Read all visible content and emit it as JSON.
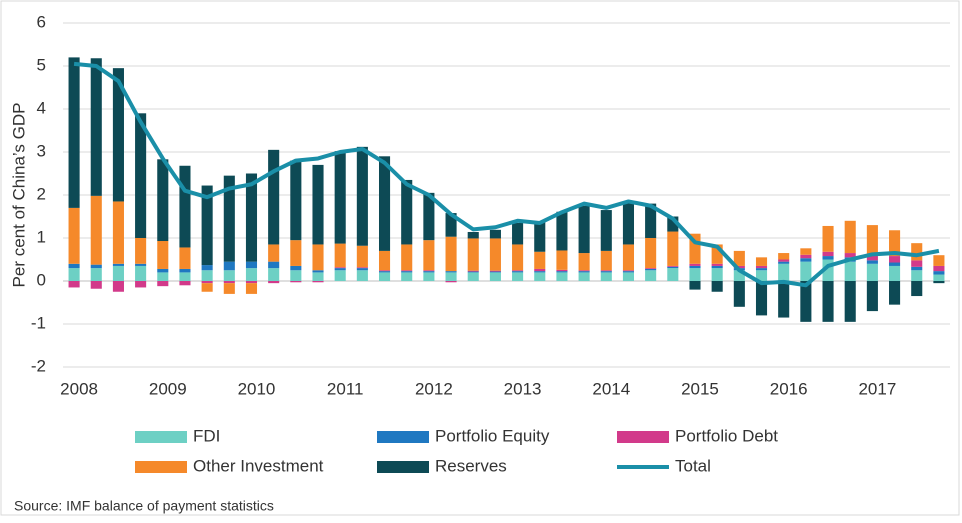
{
  "chart_data": {
    "type": "bar",
    "stacked": true,
    "y_label": "Per cent of China’s GDP",
    "source": "Source: IMF balance of payment  statistics",
    "categories": [
      "2008",
      null,
      null,
      null,
      "2009",
      null,
      null,
      null,
      "2010",
      null,
      null,
      null,
      "2011",
      null,
      null,
      null,
      "2012",
      null,
      null,
      null,
      "2013",
      null,
      null,
      null,
      "2014",
      null,
      null,
      null,
      "2015",
      null,
      null,
      null,
      "2016",
      null,
      null,
      null,
      "2017",
      null,
      null,
      null
    ],
    "ylim": [
      -2,
      6
    ],
    "yticks": [
      -2,
      -1,
      0,
      1,
      2,
      3,
      4,
      5,
      6
    ],
    "grid": true,
    "series": [
      {
        "name": "FDI",
        "color": "#6dd0c4",
        "values": [
          0.3,
          0.3,
          0.35,
          0.35,
          0.2,
          0.2,
          0.25,
          0.25,
          0.3,
          0.3,
          0.25,
          0.2,
          0.25,
          0.25,
          0.2,
          0.2,
          0.2,
          0.2,
          0.2,
          0.2,
          0.2,
          0.2,
          0.2,
          0.2,
          0.2,
          0.2,
          0.25,
          0.3,
          0.3,
          0.3,
          0.25,
          0.25,
          0.4,
          0.45,
          0.5,
          0.45,
          0.4,
          0.35,
          0.25,
          0.15
        ]
      },
      {
        "name": "Portfolio Equity",
        "color": "#1f78c1",
        "values": [
          0.1,
          0.08,
          0.05,
          0.05,
          0.08,
          0.08,
          0.12,
          0.2,
          0.15,
          0.15,
          0.1,
          0.05,
          0.05,
          0.05,
          0.03,
          0.03,
          0.03,
          0.03,
          0.02,
          0.02,
          0.03,
          0.03,
          0.03,
          0.03,
          0.03,
          0.03,
          0.03,
          0.03,
          0.05,
          0.05,
          0.05,
          0.05,
          0.05,
          0.08,
          0.08,
          0.1,
          0.08,
          0.08,
          0.08,
          0.08
        ]
      },
      {
        "name": "Portfolio Debt",
        "color": "#d23a8a",
        "values": [
          -0.15,
          -0.18,
          -0.25,
          -0.15,
          -0.12,
          -0.1,
          -0.05,
          -0.05,
          -0.05,
          -0.05,
          -0.03,
          -0.03,
          0.02,
          0.02,
          0.02,
          0.02,
          0.02,
          -0.03,
          0.02,
          0.02,
          0.02,
          0.05,
          0.03,
          0.02,
          0.02,
          0.02,
          0.02,
          0.02,
          0.05,
          0.05,
          0.05,
          0.05,
          0.05,
          0.08,
          0.1,
          0.1,
          0.12,
          0.15,
          0.15,
          0.12
        ]
      },
      {
        "name": "Other Investment",
        "color": "#f5892a",
        "values": [
          1.3,
          1.6,
          1.45,
          0.6,
          0.65,
          0.5,
          -0.2,
          -0.25,
          -0.25,
          0.4,
          0.6,
          0.6,
          0.55,
          0.5,
          0.45,
          0.6,
          0.7,
          0.8,
          0.75,
          0.75,
          0.6,
          0.4,
          0.45,
          0.4,
          0.45,
          0.6,
          0.7,
          0.8,
          0.7,
          0.45,
          0.35,
          0.2,
          0.15,
          0.15,
          0.6,
          0.75,
          0.7,
          0.6,
          0.4,
          0.25
        ]
      },
      {
        "name": "Reserves",
        "color": "#0d4a55",
        "values": [
          3.5,
          3.2,
          3.1,
          2.9,
          1.9,
          1.9,
          1.85,
          2.0,
          2.05,
          2.2,
          1.85,
          1.85,
          2.15,
          2.3,
          2.2,
          1.5,
          1.1,
          0.55,
          0.15,
          0.2,
          0.5,
          0.7,
          0.9,
          1.1,
          0.95,
          1.0,
          0.8,
          0.35,
          -0.2,
          -0.25,
          -0.6,
          -0.8,
          -0.85,
          -0.95,
          -0.95,
          -0.95,
          -0.7,
          -0.55,
          -0.35,
          -0.05
        ]
      },
      {
        "name": "Total",
        "type": "line",
        "color": "#1a8fa8",
        "values": [
          5.05,
          5.0,
          4.65,
          3.7,
          2.85,
          2.1,
          1.95,
          2.15,
          2.25,
          2.55,
          2.8,
          2.85,
          3.0,
          3.07,
          2.75,
          2.25,
          2.0,
          1.55,
          1.2,
          1.25,
          1.4,
          1.35,
          1.6,
          1.8,
          1.7,
          1.85,
          1.75,
          1.45,
          0.9,
          0.8,
          0.25,
          -0.05,
          -0.02,
          -0.1,
          0.35,
          0.5,
          0.62,
          0.65,
          0.6,
          0.7
        ]
      }
    ]
  }
}
